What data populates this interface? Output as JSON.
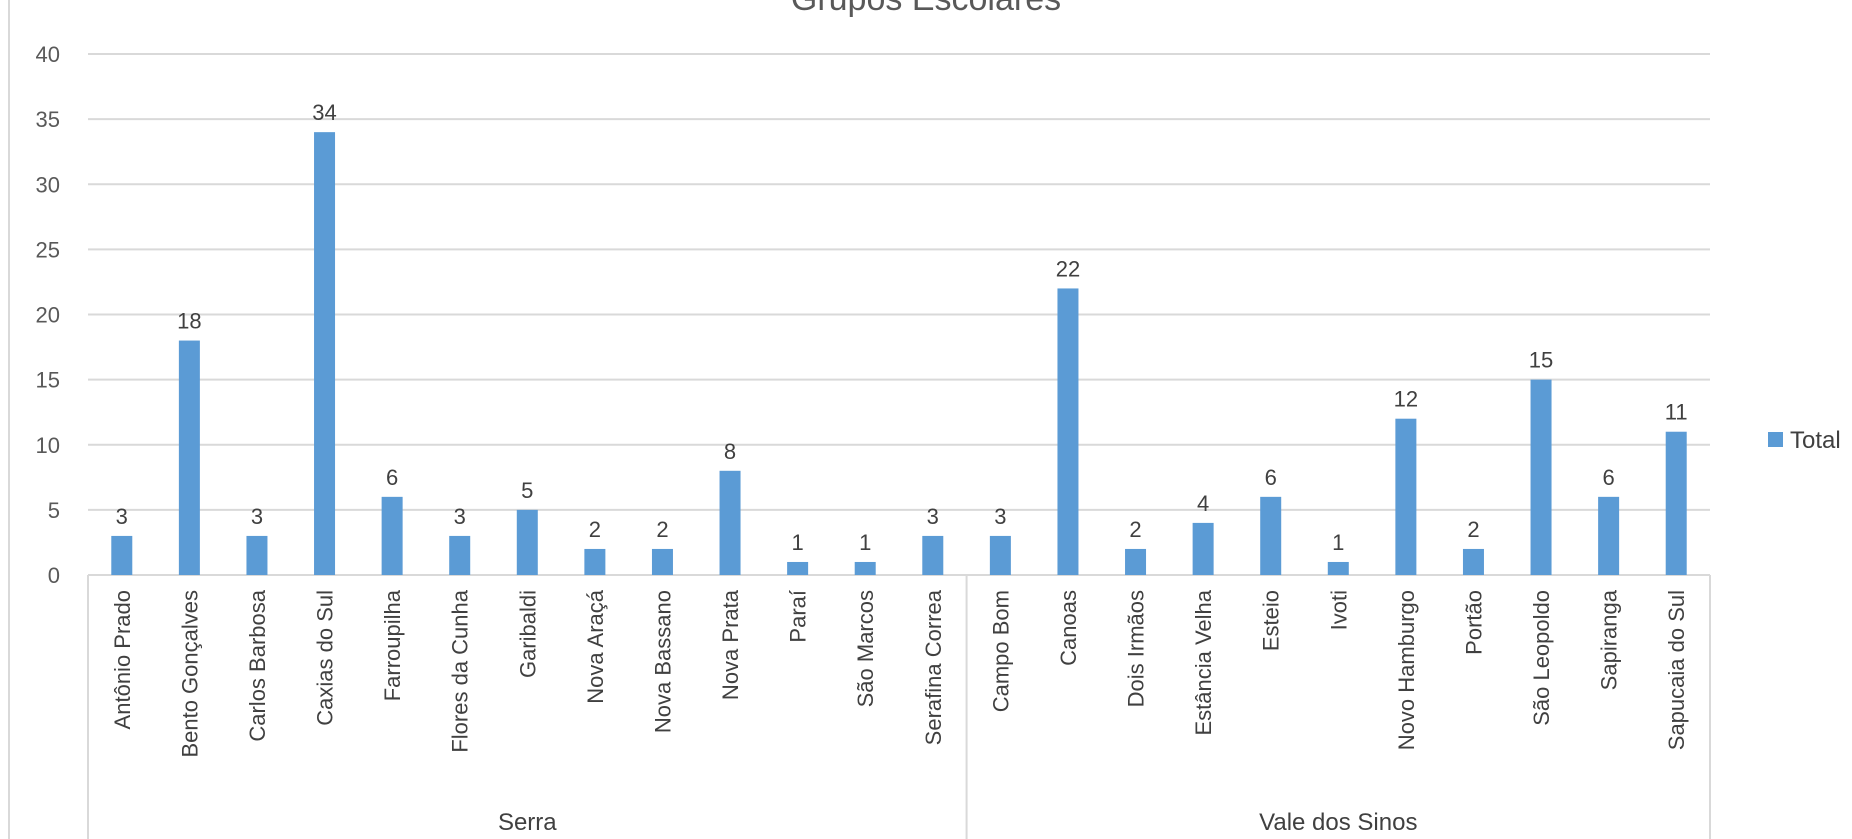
{
  "chart_data": {
    "type": "bar",
    "title": "Grupos Escolares",
    "xlabel": "",
    "ylabel": "",
    "ylim": [
      0,
      40
    ],
    "yticks": [
      0,
      5,
      10,
      15,
      20,
      25,
      30,
      35,
      40
    ],
    "grid": true,
    "legend_position": "right",
    "bar_color": "#5B9BD5",
    "groups": [
      {
        "name": "Serra",
        "categories": [
          "Antônio Prado",
          "Bento Gonçalves",
          "Carlos Barbosa",
          "Caxias do Sul",
          "Farroupilha",
          "Flores da Cunha",
          "Garibaldi",
          "Nova Araçá",
          "Nova Bassano",
          "Nova Prata",
          "Paraí",
          "São Marcos",
          "Serafina Correa"
        ],
        "values": [
          3,
          18,
          3,
          34,
          6,
          3,
          5,
          2,
          2,
          8,
          1,
          1,
          3
        ]
      },
      {
        "name": "Vale dos Sinos",
        "categories": [
          "Campo Bom",
          "Canoas",
          "Dois Irmãos",
          "Estância Velha",
          "Esteio",
          "Ivoti",
          "Novo Hamburgo",
          "Portão",
          "São Leopoldo",
          "Sapiranga",
          "Sapucaia do Sul"
        ],
        "values": [
          3,
          22,
          2,
          4,
          6,
          1,
          12,
          2,
          15,
          6,
          11
        ]
      }
    ],
    "series": [
      {
        "name": "Total",
        "color": "#5B9BD5"
      }
    ]
  }
}
